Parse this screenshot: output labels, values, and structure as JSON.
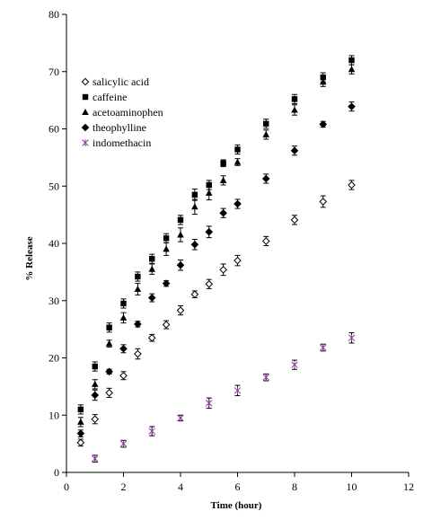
{
  "chart_data": {
    "type": "scatter",
    "title": "",
    "xlabel": "Time (hour)",
    "ylabel": "% Release",
    "xlim": [
      0,
      12
    ],
    "ylim": [
      0,
      80
    ],
    "x_ticks": [
      "0",
      "2",
      "4",
      "6",
      "8",
      "10",
      "12"
    ],
    "y_ticks": [
      "0",
      "10",
      "20",
      "30",
      "40",
      "50",
      "60",
      "70",
      "80"
    ],
    "grid": false,
    "legend_position": "left",
    "series": [
      {
        "name": "salicylic acid",
        "marker": "open-diamond",
        "color": "#000000",
        "points": [
          {
            "x": 0.5,
            "y": 5.2,
            "err": 0.6
          },
          {
            "x": 1,
            "y": 9.3,
            "err": 0.8
          },
          {
            "x": 1.5,
            "y": 13.9,
            "err": 0.8
          },
          {
            "x": 2,
            "y": 16.9,
            "err": 0.7
          },
          {
            "x": 2.5,
            "y": 20.7,
            "err": 0.9
          },
          {
            "x": 3,
            "y": 23.5,
            "err": 0.6
          },
          {
            "x": 3.5,
            "y": 25.8,
            "err": 0.7
          },
          {
            "x": 4,
            "y": 28.3,
            "err": 0.8
          },
          {
            "x": 4.5,
            "y": 31.1,
            "err": 0.6
          },
          {
            "x": 5,
            "y": 32.9,
            "err": 0.8
          },
          {
            "x": 5.5,
            "y": 35.4,
            "err": 1.0
          },
          {
            "x": 6,
            "y": 37.0,
            "err": 0.9
          },
          {
            "x": 7,
            "y": 40.4,
            "err": 0.8
          },
          {
            "x": 8,
            "y": 44.1,
            "err": 0.8
          },
          {
            "x": 9,
            "y": 47.3,
            "err": 1.0
          },
          {
            "x": 10,
            "y": 50.2,
            "err": 0.8
          }
        ]
      },
      {
        "name": "caffeine",
        "marker": "filled-square",
        "color": "#000000",
        "points": [
          {
            "x": 0.5,
            "y": 11.0,
            "err": 0.8
          },
          {
            "x": 1,
            "y": 18.5,
            "err": 0.8
          },
          {
            "x": 1.5,
            "y": 25.3,
            "err": 0.8
          },
          {
            "x": 2,
            "y": 29.5,
            "err": 0.8
          },
          {
            "x": 2.5,
            "y": 34.2,
            "err": 0.8
          },
          {
            "x": 3,
            "y": 37.3,
            "err": 0.8
          },
          {
            "x": 3.5,
            "y": 40.9,
            "err": 0.8
          },
          {
            "x": 4,
            "y": 44.1,
            "err": 0.8
          },
          {
            "x": 4.5,
            "y": 48.5,
            "err": 1.0
          },
          {
            "x": 5,
            "y": 50.2,
            "err": 0.8
          },
          {
            "x": 5.5,
            "y": 54.0,
            "err": 0.6
          },
          {
            "x": 6,
            "y": 56.4,
            "err": 0.8
          },
          {
            "x": 7,
            "y": 60.9,
            "err": 0.8
          },
          {
            "x": 8,
            "y": 65.2,
            "err": 0.8
          },
          {
            "x": 9,
            "y": 69.0,
            "err": 0.8
          },
          {
            "x": 10,
            "y": 72.0,
            "err": 0.8
          }
        ]
      },
      {
        "name": "acetoaminophen",
        "marker": "filled-triangle",
        "color": "#000000",
        "points": [
          {
            "x": 0.5,
            "y": 8.8,
            "err": 0.8
          },
          {
            "x": 1,
            "y": 15.4,
            "err": 0.8
          },
          {
            "x": 1.5,
            "y": 22.5,
            "err": 0.6
          },
          {
            "x": 2,
            "y": 27.0,
            "err": 0.9
          },
          {
            "x": 2.5,
            "y": 32.0,
            "err": 1.0
          },
          {
            "x": 3,
            "y": 35.5,
            "err": 0.9
          },
          {
            "x": 3.5,
            "y": 39.0,
            "err": 1.1
          },
          {
            "x": 4,
            "y": 41.5,
            "err": 1.2
          },
          {
            "x": 4.5,
            "y": 46.4,
            "err": 1.3
          },
          {
            "x": 5,
            "y": 48.8,
            "err": 1.2
          },
          {
            "x": 5.5,
            "y": 51.0,
            "err": 0.8
          },
          {
            "x": 6,
            "y": 54.2,
            "err": 0.6
          },
          {
            "x": 7,
            "y": 59.0,
            "err": 0.8
          },
          {
            "x": 8,
            "y": 63.3,
            "err": 0.9
          },
          {
            "x": 9,
            "y": 68.2,
            "err": 0.8
          },
          {
            "x": 10,
            "y": 70.4,
            "err": 0.8
          }
        ]
      },
      {
        "name": "theophylline",
        "marker": "filled-diamond",
        "color": "#000000",
        "points": [
          {
            "x": 0.5,
            "y": 6.8,
            "err": 0.6
          },
          {
            "x": 1,
            "y": 13.5,
            "err": 0.9
          },
          {
            "x": 1.5,
            "y": 17.6,
            "err": 0.4
          },
          {
            "x": 2,
            "y": 21.6,
            "err": 0.7
          },
          {
            "x": 2.5,
            "y": 25.9,
            "err": 0.5
          },
          {
            "x": 3,
            "y": 30.5,
            "err": 0.7
          },
          {
            "x": 3.5,
            "y": 33.0,
            "err": 0.5
          },
          {
            "x": 4,
            "y": 36.2,
            "err": 0.9
          },
          {
            "x": 4.5,
            "y": 39.8,
            "err": 0.9
          },
          {
            "x": 5,
            "y": 42.0,
            "err": 1.0
          },
          {
            "x": 5.5,
            "y": 45.3,
            "err": 0.8
          },
          {
            "x": 6,
            "y": 46.9,
            "err": 0.8
          },
          {
            "x": 7,
            "y": 51.3,
            "err": 0.8
          },
          {
            "x": 8,
            "y": 56.2,
            "err": 0.8
          },
          {
            "x": 9,
            "y": 60.8,
            "err": 0.5
          },
          {
            "x": 10,
            "y": 63.9,
            "err": 0.8
          }
        ]
      },
      {
        "name": "indomethacin",
        "marker": "asterisk",
        "color": "#8b3a9c",
        "points": [
          {
            "x": 1,
            "y": 2.4,
            "err": 0.6
          },
          {
            "x": 2,
            "y": 5.0,
            "err": 0.6
          },
          {
            "x": 3,
            "y": 7.2,
            "err": 0.8
          },
          {
            "x": 4,
            "y": 9.5,
            "err": 0.5
          },
          {
            "x": 5,
            "y": 12.1,
            "err": 0.9
          },
          {
            "x": 6,
            "y": 14.3,
            "err": 0.9
          },
          {
            "x": 7,
            "y": 16.6,
            "err": 0.6
          },
          {
            "x": 8,
            "y": 18.8,
            "err": 0.8
          },
          {
            "x": 9,
            "y": 21.8,
            "err": 0.6
          },
          {
            "x": 10,
            "y": 23.5,
            "err": 0.9
          }
        ]
      }
    ]
  }
}
